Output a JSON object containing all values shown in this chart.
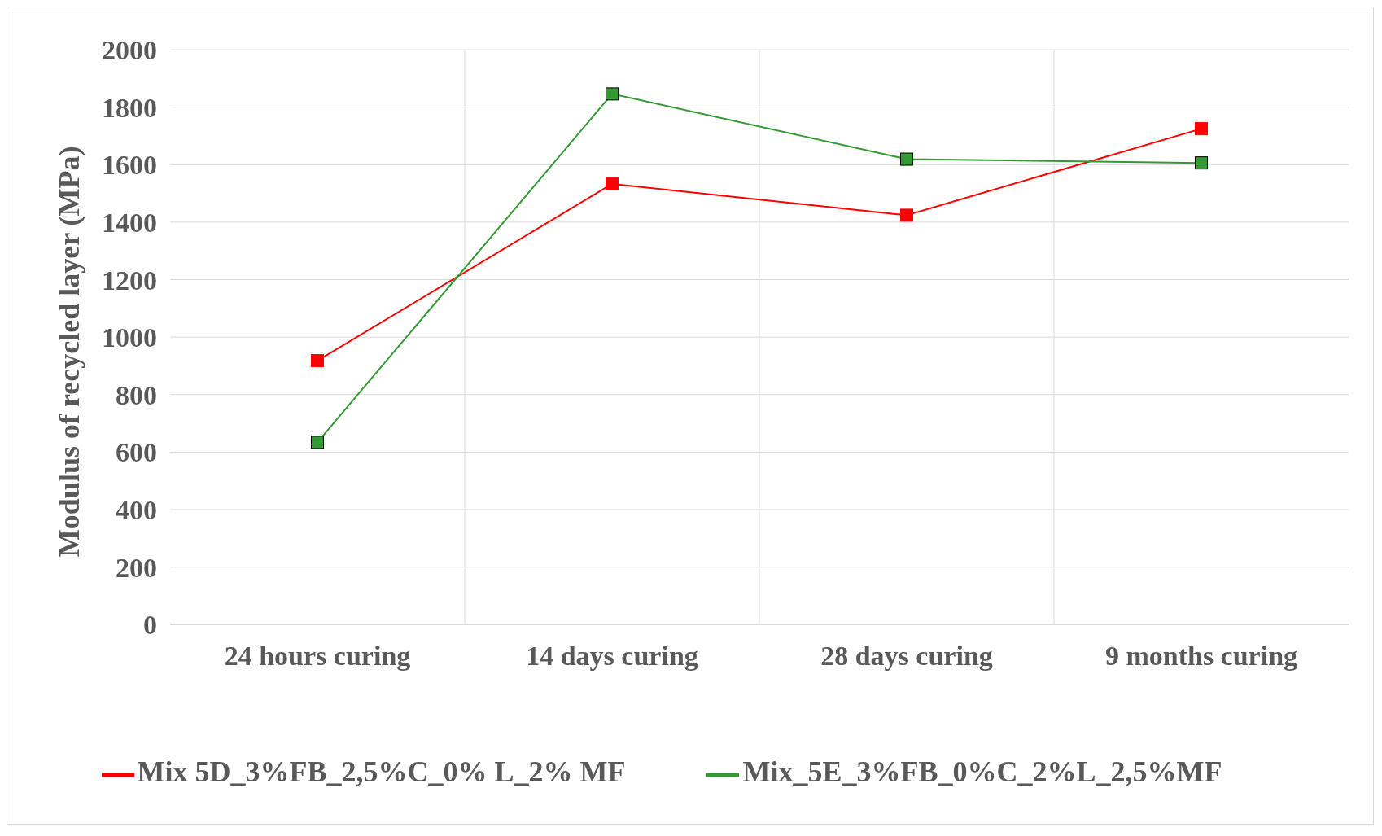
{
  "chart_data": {
    "type": "line",
    "ylabel": "Modulus of recycled layer (MPa)",
    "categories": [
      "24 hours curing",
      "14 days curing",
      "28 days curing",
      "9 months curing"
    ],
    "series": [
      {
        "name": "Mix 5D_3%FB_2,5%C_0% L_2% MF",
        "color": "#ff0000",
        "values": [
          918,
          1533,
          1424,
          1725
        ]
      },
      {
        "name": "Mix_5E_3%FB_0%C_2%L_2,5%MF",
        "color": "#339933",
        "values": [
          634,
          1846,
          1619,
          1606
        ]
      }
    ],
    "ylim": [
      0,
      2000
    ],
    "yticks": [
      0,
      200,
      400,
      600,
      800,
      1000,
      1200,
      1400,
      1600,
      1800,
      2000
    ],
    "grid": true,
    "legend": "bottom",
    "marker": "square",
    "line_style": "solid"
  }
}
